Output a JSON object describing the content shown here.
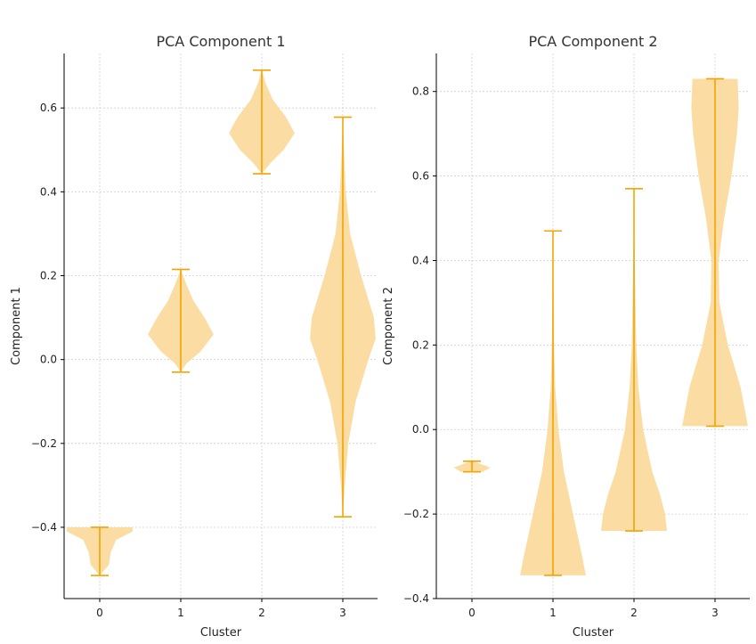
{
  "colors": {
    "violin_fill": "#fbd999",
    "violin_line": "#f5a300",
    "grid": "#cfcfcf",
    "axis": "#000000",
    "text": "#333333",
    "suptitle_text": "#f4f4f4"
  },
  "figure": {
    "suptitle": ""
  },
  "chart_data": [
    {
      "type": "violin",
      "title": "PCA Component   1",
      "xlabel": "Cluster",
      "ylabel": "Component  1",
      "categories": [
        "0",
        "1",
        "2",
        "3"
      ],
      "ylim": [
        -0.57,
        0.73
      ],
      "yticks": [
        -0.4,
        -0.2,
        0.0,
        0.2,
        0.4,
        0.6
      ],
      "ytick_labels": [
        "−0.4",
        "−0.2",
        "0.0",
        "0.2",
        "0.4",
        "0.6"
      ],
      "grid": true,
      "violins": [
        {
          "category": "0",
          "min": -0.515,
          "max": -0.4,
          "shape": [
            [
              -0.515,
              0.0
            ],
            [
              -0.49,
              0.25
            ],
            [
              -0.46,
              0.3
            ],
            [
              -0.43,
              0.45
            ],
            [
              -0.41,
              0.9
            ],
            [
              -0.4,
              0.9
            ]
          ]
        },
        {
          "category": "1",
          "min": -0.03,
          "max": 0.215,
          "shape": [
            [
              -0.03,
              0.0
            ],
            [
              -0.01,
              0.15
            ],
            [
              0.02,
              0.55
            ],
            [
              0.06,
              0.9
            ],
            [
              0.1,
              0.65
            ],
            [
              0.14,
              0.35
            ],
            [
              0.18,
              0.15
            ],
            [
              0.215,
              0.0
            ]
          ]
        },
        {
          "category": "2",
          "min": 0.443,
          "max": 0.69,
          "shape": [
            [
              0.443,
              0.0
            ],
            [
              0.47,
              0.25
            ],
            [
              0.5,
              0.6
            ],
            [
              0.54,
              0.9
            ],
            [
              0.58,
              0.65
            ],
            [
              0.62,
              0.3
            ],
            [
              0.66,
              0.1
            ],
            [
              0.69,
              0.0
            ]
          ]
        },
        {
          "category": "3",
          "min": -0.375,
          "max": 0.578,
          "shape": [
            [
              -0.375,
              0.0
            ],
            [
              -0.3,
              0.05
            ],
            [
              -0.2,
              0.15
            ],
            [
              -0.1,
              0.35
            ],
            [
              0.0,
              0.7
            ],
            [
              0.05,
              0.9
            ],
            [
              0.1,
              0.85
            ],
            [
              0.2,
              0.5
            ],
            [
              0.3,
              0.2
            ],
            [
              0.4,
              0.08
            ],
            [
              0.5,
              0.03
            ],
            [
              0.578,
              0.0
            ]
          ]
        }
      ]
    },
    {
      "type": "violin",
      "title": "PCA Component   2",
      "xlabel": "Cluster",
      "ylabel": "Component  2",
      "categories": [
        "0",
        "1",
        "2",
        "3"
      ],
      "ylim": [
        -0.4,
        0.89
      ],
      "yticks": [
        -0.4,
        -0.2,
        0.0,
        0.2,
        0.4,
        0.6,
        0.8
      ],
      "ytick_labels": [
        "−0.4",
        "−0.2",
        "0.0",
        "0.2",
        "0.4",
        "0.6",
        "0.8"
      ],
      "grid": true,
      "violins": [
        {
          "category": "0",
          "min": -0.1,
          "max": -0.075,
          "shape": [
            [
              -0.1,
              0.3
            ],
            [
              -0.09,
              0.5
            ],
            [
              -0.08,
              0.2
            ],
            [
              -0.075,
              0.0
            ]
          ]
        },
        {
          "category": "1",
          "min": -0.345,
          "max": 0.47,
          "shape": [
            [
              -0.345,
              0.9
            ],
            [
              -0.3,
              0.8
            ],
            [
              -0.2,
              0.55
            ],
            [
              -0.1,
              0.3
            ],
            [
              0.0,
              0.15
            ],
            [
              0.1,
              0.06
            ],
            [
              0.2,
              0.03
            ],
            [
              0.3,
              0.02
            ],
            [
              0.47,
              0.0
            ]
          ]
        },
        {
          "category": "2",
          "min": -0.24,
          "max": 0.57,
          "shape": [
            [
              -0.24,
              0.9
            ],
            [
              -0.2,
              0.85
            ],
            [
              -0.15,
              0.7
            ],
            [
              -0.1,
              0.5
            ],
            [
              0.0,
              0.25
            ],
            [
              0.1,
              0.12
            ],
            [
              0.2,
              0.06
            ],
            [
              0.3,
              0.04
            ],
            [
              0.4,
              0.02
            ],
            [
              0.57,
              0.0
            ]
          ]
        },
        {
          "category": "3",
          "min": 0.008,
          "max": 0.83,
          "shape": [
            [
              0.008,
              0.9
            ],
            [
              0.1,
              0.7
            ],
            [
              0.2,
              0.35
            ],
            [
              0.3,
              0.12
            ],
            [
              0.4,
              0.1
            ],
            [
              0.5,
              0.25
            ],
            [
              0.6,
              0.45
            ],
            [
              0.7,
              0.6
            ],
            [
              0.76,
              0.65
            ],
            [
              0.83,
              0.62
            ]
          ]
        }
      ]
    }
  ]
}
